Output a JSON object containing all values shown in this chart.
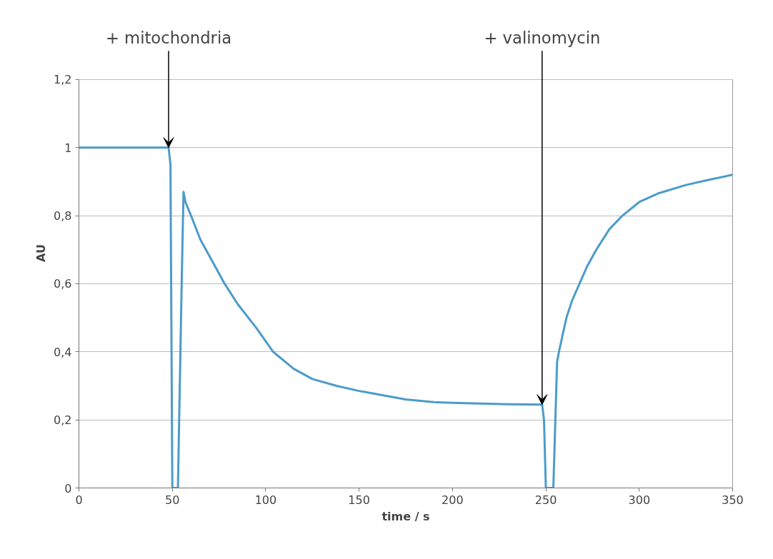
{
  "chart_data": {
    "type": "line",
    "xlabel": "time / s",
    "ylabel": "AU",
    "x": [
      0,
      10,
      20,
      30,
      40,
      48,
      49,
      50,
      53,
      55,
      56,
      57,
      60,
      65,
      70,
      78,
      85,
      95,
      104,
      115,
      125,
      138,
      150,
      165,
      175,
      190,
      200,
      215,
      230,
      248,
      249,
      250,
      254,
      256,
      257,
      261,
      264,
      268,
      272,
      277,
      284,
      291,
      300,
      310,
      325,
      337,
      350
    ],
    "series": [
      {
        "color": "#4b9bcb",
        "values": [
          1.0,
          1.0,
          1.0,
          1.0,
          1.0,
          1.0,
          0.95,
          0,
          0,
          0.6,
          0.87,
          0.84,
          0.8,
          0.73,
          0.68,
          0.6,
          0.54,
          0.47,
          0.4,
          0.35,
          0.32,
          0.3,
          0.285,
          0.27,
          0.26,
          0.252,
          0.25,
          0.248,
          0.246,
          0.245,
          0.2,
          0,
          0,
          0.37,
          0.4,
          0.5,
          0.55,
          0.6,
          0.65,
          0.7,
          0.76,
          0.8,
          0.84,
          0.865,
          0.89,
          0.905,
          0.92
        ]
      }
    ],
    "xlim": [
      0,
      350
    ],
    "xticks": [
      0,
      50,
      100,
      150,
      200,
      250,
      300,
      350
    ],
    "ylim": [
      0,
      1.2
    ],
    "yticks": [
      0,
      {
        "value": 0.2,
        "label": "0,2"
      },
      {
        "value": 0.4,
        "label": "0,4"
      },
      {
        "value": 0.6,
        "label": "0,6"
      },
      {
        "value": 0.8,
        "label": "0,8"
      },
      1,
      {
        "value": 1.2,
        "label": "1,2"
      }
    ],
    "grid": "y",
    "marker": "none",
    "line_style": "solid",
    "annotations": [
      {
        "text": "+ mitochondria",
        "x": 48,
        "y": 1.0
      },
      {
        "text": "+ valinomycin",
        "x": 248,
        "y": 0.245
      }
    ]
  }
}
